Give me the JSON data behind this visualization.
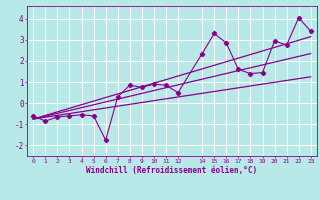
{
  "xlabel": "Windchill (Refroidissement éolien,°C)",
  "background_color": "#b8e8e8",
  "grid_color": "#ffffff",
  "line_color": "#8b008b",
  "xlim": [
    -0.5,
    23.5
  ],
  "ylim": [
    -2.5,
    4.6
  ],
  "xticks": [
    0,
    1,
    2,
    3,
    4,
    5,
    6,
    7,
    8,
    9,
    10,
    11,
    12,
    14,
    15,
    16,
    17,
    18,
    19,
    20,
    21,
    22,
    23
  ],
  "yticks": [
    -2,
    -1,
    0,
    1,
    2,
    3,
    4
  ],
  "series1_x": [
    0,
    1,
    2,
    3,
    4,
    5,
    6,
    7,
    8,
    9,
    10,
    11,
    12,
    14,
    15,
    16,
    17,
    18,
    19,
    20,
    21,
    22,
    23
  ],
  "series1_y": [
    -0.6,
    -0.85,
    -0.65,
    -0.6,
    -0.55,
    -0.6,
    -1.75,
    0.3,
    0.85,
    0.75,
    0.9,
    0.85,
    0.5,
    2.35,
    3.3,
    2.85,
    1.6,
    1.4,
    1.45,
    2.95,
    2.75,
    4.05,
    3.4
  ],
  "trend1_x": [
    0,
    23
  ],
  "trend1_y": [
    -0.75,
    3.15
  ],
  "trend2_x": [
    0,
    23
  ],
  "trend2_y": [
    -0.75,
    2.35
  ],
  "trend3_x": [
    0,
    23
  ],
  "trend3_y": [
    -0.75,
    1.25
  ],
  "figsize": [
    3.2,
    2.0
  ],
  "dpi": 100
}
